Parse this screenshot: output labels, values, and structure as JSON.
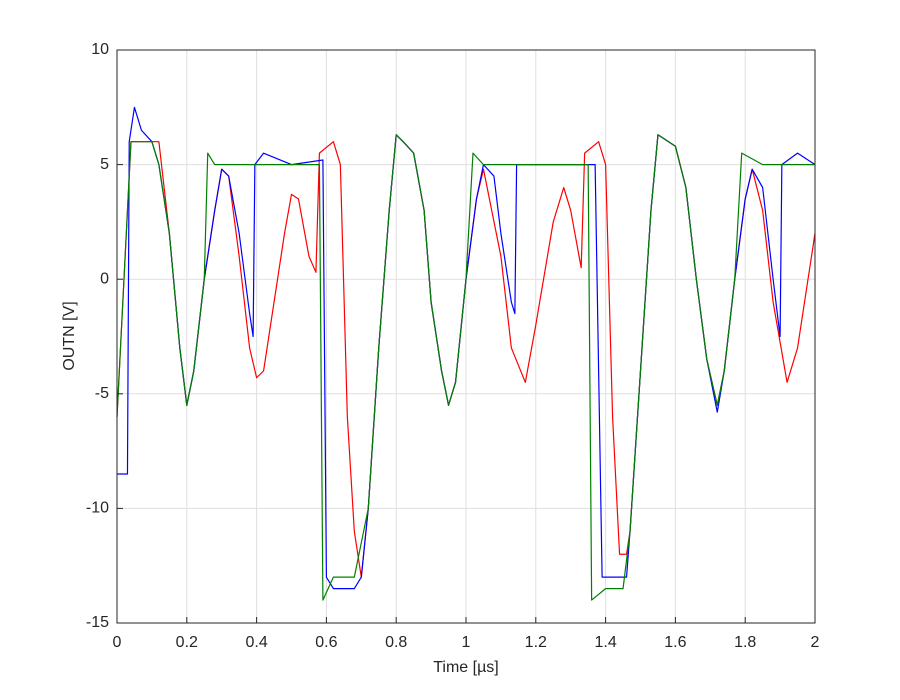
{
  "chart_data": {
    "type": "line",
    "xlabel": "Time [µs]",
    "ylabel": "OUTN [V]",
    "xlim": [
      0,
      2
    ],
    "xticks": [
      0,
      0.2,
      0.4,
      0.6,
      0.8,
      1,
      1.2,
      1.4,
      1.6,
      1.8,
      2
    ],
    "ylim": [
      -15,
      10
    ],
    "yticks": [
      -15,
      -10,
      -5,
      0,
      5,
      10
    ],
    "grid": true,
    "series": [
      {
        "color": "#ff0000",
        "x": [
          0,
          0.04,
          0.12,
          0.15,
          0.18,
          0.2,
          0.22,
          0.25,
          0.28,
          0.3,
          0.32,
          0.35,
          0.38,
          0.4,
          0.42,
          0.45,
          0.48,
          0.5,
          0.52,
          0.55,
          0.57,
          0.58,
          0.62,
          0.64,
          0.66,
          0.68,
          0.7,
          0.72,
          0.75,
          0.78,
          0.8,
          0.82,
          0.85,
          0.88,
          0.9,
          0.93,
          0.95,
          0.97,
          1.0,
          1.03,
          1.05,
          1.1,
          1.13,
          1.17,
          1.2,
          1.25,
          1.28,
          1.3,
          1.33,
          1.34,
          1.38,
          1.4,
          1.42,
          1.44,
          1.46,
          1.47,
          1.5,
          1.53,
          1.55,
          1.6,
          1.63,
          1.66,
          1.69,
          1.72,
          1.74,
          1.77,
          1.8,
          1.82,
          1.85,
          1.88,
          1.92,
          1.95,
          1.98,
          2.0
        ],
        "values": [
          -6,
          6,
          6,
          2,
          -3,
          -5.5,
          -4,
          0,
          3,
          4.8,
          4.5,
          1,
          -3,
          -4.3,
          -4,
          -1,
          2,
          3.7,
          3.5,
          1,
          0.3,
          5.5,
          6,
          5,
          -6,
          -11,
          -13,
          -10,
          -3,
          3,
          6.3,
          6,
          5.5,
          3,
          -1,
          -4,
          -5.5,
          -4.5,
          0,
          3.5,
          4.8,
          1,
          -3,
          -4.5,
          -2,
          2.5,
          4,
          3,
          0.5,
          5.5,
          6,
          5,
          -6,
          -12,
          -12,
          -11,
          -4,
          3,
          6.3,
          5.8,
          4,
          0,
          -3.5,
          -5.5,
          -4,
          0,
          3.5,
          4.8,
          3,
          -1,
          -4.5,
          -3,
          0,
          2
        ]
      },
      {
        "color": "#0000ff",
        "x": [
          0,
          0.03,
          0.035,
          0.05,
          0.07,
          0.1,
          0.12,
          0.15,
          0.18,
          0.2,
          0.22,
          0.25,
          0.28,
          0.3,
          0.32,
          0.35,
          0.38,
          0.39,
          0.395,
          0.42,
          0.5,
          0.59,
          0.6,
          0.62,
          0.68,
          0.7,
          0.72,
          0.75,
          0.78,
          0.8,
          0.82,
          0.85,
          0.88,
          0.9,
          0.93,
          0.95,
          0.97,
          1.0,
          1.03,
          1.05,
          1.08,
          1.1,
          1.13,
          1.14,
          1.145,
          1.2,
          1.3,
          1.37,
          1.39,
          1.46,
          1.47,
          1.5,
          1.53,
          1.55,
          1.6,
          1.63,
          1.66,
          1.69,
          1.72,
          1.74,
          1.77,
          1.8,
          1.82,
          1.85,
          1.88,
          1.9,
          1.905,
          1.95,
          2.0
        ],
        "values": [
          -8.5,
          -8.5,
          6,
          7.5,
          6.5,
          6,
          5,
          2,
          -3,
          -5.5,
          -4,
          0,
          3,
          4.8,
          4.5,
          2,
          -1.5,
          -2.5,
          5,
          5.5,
          5,
          5.2,
          -13,
          -13.5,
          -13.5,
          -13,
          -10,
          -3,
          3,
          6.3,
          6,
          5.5,
          3,
          -1,
          -4,
          -5.5,
          -4.5,
          0,
          3.5,
          5,
          4.5,
          2,
          -1,
          -1.5,
          5,
          5,
          5,
          5,
          -13,
          -13,
          -11,
          -4,
          3,
          6.3,
          5.8,
          4,
          0,
          -3.5,
          -5.8,
          -4,
          0,
          3.5,
          4.8,
          4,
          0,
          -2.5,
          5,
          5.5,
          5
        ]
      },
      {
        "color": "#008000",
        "x": [
          0,
          0.04,
          0.1,
          0.12,
          0.15,
          0.18,
          0.2,
          0.22,
          0.25,
          0.26,
          0.28,
          0.4,
          0.58,
          0.59,
          0.62,
          0.68,
          0.72,
          0.75,
          0.78,
          0.8,
          0.82,
          0.85,
          0.88,
          0.9,
          0.93,
          0.95,
          0.97,
          1.0,
          1.02,
          1.05,
          1.2,
          1.35,
          1.36,
          1.4,
          1.45,
          1.47,
          1.5,
          1.53,
          1.55,
          1.6,
          1.63,
          1.66,
          1.69,
          1.72,
          1.74,
          1.77,
          1.79,
          1.85,
          2.0
        ],
        "values": [
          -6,
          6,
          6,
          5,
          2,
          -3,
          -5.5,
          -4,
          0,
          5.5,
          5,
          5,
          5,
          -14,
          -13,
          -13,
          -10,
          -3,
          3,
          6.3,
          6,
          5.5,
          3,
          -1,
          -4,
          -5.5,
          -4.5,
          0,
          5.5,
          5,
          5,
          5,
          -14,
          -13.5,
          -13.5,
          -11,
          -4,
          3,
          6.3,
          5.8,
          4,
          0,
          -3.5,
          -5.5,
          -4,
          0,
          5.5,
          5,
          5
        ]
      }
    ]
  }
}
